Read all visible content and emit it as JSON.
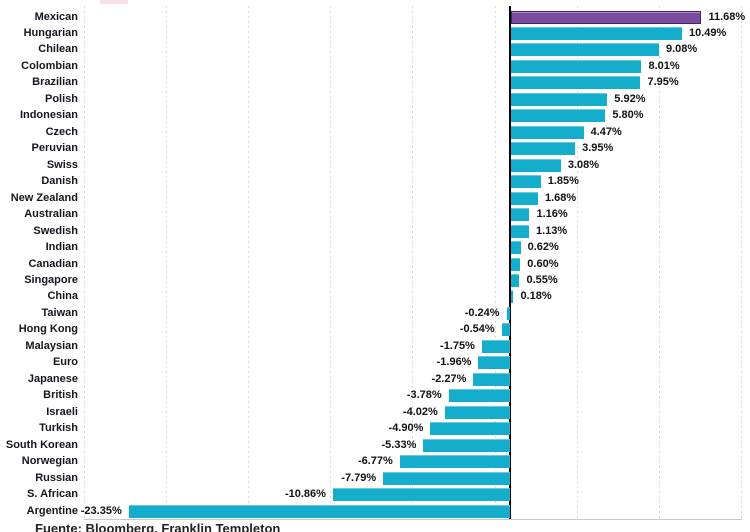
{
  "chart_data": {
    "type": "bar",
    "orientation": "horizontal",
    "title": "",
    "categories": [
      "Mexican",
      "Hungarian",
      "Chilean",
      "Colombian",
      "Brazilian",
      "Polish",
      "Indonesian",
      "Czech",
      "Peruvian",
      "Swiss",
      "Danish",
      "New Zealand",
      "Australian",
      "Swedish",
      "Indian",
      "Canadian",
      "Singapore",
      "China",
      "Taiwan",
      "Hong Kong",
      "Malaysian",
      "Euro",
      "Japanese",
      "British",
      "Israeli",
      "Turkish",
      "South Korean",
      "Norwegian",
      "Russian",
      "S. African",
      "Argentine"
    ],
    "values": [
      11.68,
      10.49,
      9.08,
      8.01,
      7.95,
      5.92,
      5.8,
      4.47,
      3.95,
      3.08,
      1.85,
      1.68,
      1.16,
      1.13,
      0.62,
      0.6,
      0.55,
      0.18,
      -0.24,
      -0.54,
      -1.75,
      -1.96,
      -2.27,
      -3.78,
      -4.02,
      -4.9,
      -5.33,
      -6.77,
      -7.79,
      -10.86,
      -23.35
    ],
    "labels": [
      "11.68%",
      "10.49%",
      "9.08%",
      "8.01%",
      "7.95%",
      "5.92%",
      "5.80%",
      "4.47%",
      "3.95%",
      "3.08%",
      "1.85%",
      "1.68%",
      "1.16%",
      "1.13%",
      "0.62%",
      "0.60%",
      "0.55%",
      "0.18%",
      "-0.24%",
      "-0.54%",
      "-1.75%",
      "-1.96%",
      "-2.27%",
      "-3.78%",
      "-4.02%",
      "-4.90%",
      "-5.33%",
      "-6.77%",
      "-7.79%",
      "-10.86%",
      "-23.35%"
    ],
    "highlight_category": "Mexican",
    "unit": "%",
    "grid": true,
    "gridline_step_pct": 5,
    "xlim_pct": [
      -26,
      14.7
    ],
    "legend": "none",
    "colors": {
      "bar": "#14adcc",
      "highlight_bar": "#7b4b9d",
      "highlight_border": "#44256a",
      "gridline": "#d7d7d7",
      "zero_axis": "#000000",
      "text": "#15151f"
    },
    "source": "Fuente: Bloomberg, Franklin Templeton"
  }
}
